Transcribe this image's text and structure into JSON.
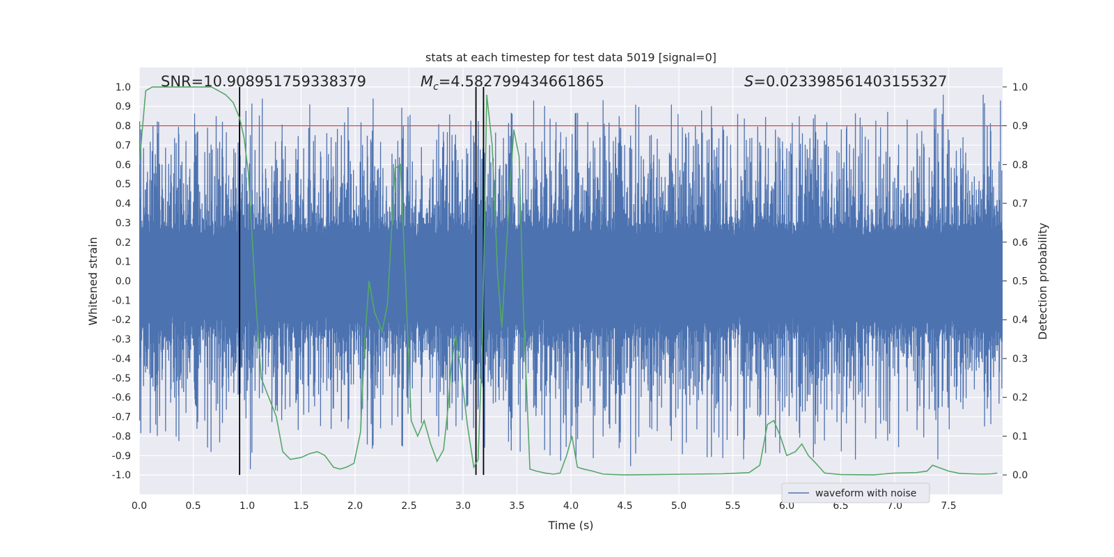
{
  "chart_data": {
    "type": "line",
    "title": "stats at each timestep for test data 5019 [signal=0]",
    "xlabel": "Time (s)",
    "ylabel": "Whitened strain",
    "ylabel_right": "Detection probability",
    "xlim": [
      0,
      8
    ],
    "ylim": [
      -1.1,
      1.1
    ],
    "ylim_right": [
      -0.05,
      1.05
    ],
    "x_ticks": [
      0.0,
      0.5,
      1.0,
      1.5,
      2.0,
      2.5,
      3.0,
      3.5,
      4.0,
      4.5,
      5.0,
      5.5,
      6.0,
      6.5,
      7.0,
      7.5
    ],
    "x_tick_labels": [
      "0.0",
      "0.5",
      "1.0",
      "1.5",
      "2.0",
      "2.5",
      "3.0",
      "3.5",
      "4.0",
      "4.5",
      "5.0",
      "5.5",
      "6.0",
      "6.5",
      "7.0",
      "7.5"
    ],
    "y_ticks": [
      -1.0,
      -0.9,
      -0.8,
      -0.7,
      -0.6,
      -0.5,
      -0.4,
      -0.3,
      -0.2,
      -0.1,
      0.0,
      0.1,
      0.2,
      0.3,
      0.4,
      0.5,
      0.6,
      0.7,
      0.8,
      0.9,
      1.0
    ],
    "y_tick_labels": [
      "-1.0",
      "-0.9",
      "-0.8",
      "-0.7",
      "-0.6",
      "-0.5",
      "-0.4",
      "-0.3",
      "-0.2",
      "-0.1",
      "0.0",
      "0.1",
      "0.2",
      "0.3",
      "0.4",
      "0.5",
      "0.6",
      "0.7",
      "0.8",
      "0.9",
      "1.0"
    ],
    "y_right_ticks": [
      0.0,
      0.1,
      0.2,
      0.3,
      0.4,
      0.5,
      0.6,
      0.7,
      0.8,
      0.9,
      1.0
    ],
    "y_right_tick_labels": [
      "0.0",
      "0.1",
      "0.2",
      "0.3",
      "0.4",
      "0.5",
      "0.6",
      "0.7",
      "0.8",
      "0.9",
      "1.0"
    ],
    "grid": true,
    "legend_position": "lower-right",
    "annotations": {
      "snr": "SNR=10.908951759338379",
      "mc": "=4.582799434661865",
      "mc_symbol": "M",
      "mc_subscript": "c",
      "s": "=0.023398561403155327",
      "s_symbol": "S"
    },
    "threshold": {
      "axis": "right",
      "value": 0.9,
      "color": "#c44e52"
    },
    "vertical_lines": [
      {
        "x": 0.93,
        "color": "#000000"
      },
      {
        "x": 3.12,
        "color": "#000000"
      },
      {
        "x": 3.19,
        "color": "#000000"
      }
    ],
    "series": [
      {
        "name": "waveform with noise",
        "axis": "left",
        "color": "#4c72b0",
        "style": "dense-noise",
        "envelope": {
          "typical_amplitude": 0.3,
          "peak_amplitude_max": 0.96,
          "dense_band": 0.22
        },
        "notable_peaks": [
          {
            "x": 0.18,
            "y": 0.82
          },
          {
            "x": 1.14,
            "y": 0.94
          },
          {
            "x": 1.58,
            "y": 0.91
          },
          {
            "x": 3.19,
            "y": 0.92
          },
          {
            "x": 7.45,
            "y": 0.96
          },
          {
            "x": 7.82,
            "y": 0.96
          },
          {
            "x": 7.98,
            "y": 0.93
          },
          {
            "x": 1.03,
            "y": -0.97
          },
          {
            "x": 3.53,
            "y": -0.88
          },
          {
            "x": 5.6,
            "y": -0.92
          },
          {
            "x": 7.4,
            "y": -0.92
          },
          {
            "x": 4.0,
            "y": -0.82
          }
        ]
      },
      {
        "name": "",
        "axis": "right",
        "color": "#55a868",
        "x": [
          0.0,
          0.06,
          0.12,
          0.25,
          0.4,
          0.55,
          0.67,
          0.8,
          0.87,
          0.93,
          0.97,
          1.01,
          1.08,
          1.13,
          1.2,
          1.27,
          1.33,
          1.4,
          1.5,
          1.58,
          1.65,
          1.72,
          1.8,
          1.86,
          1.92,
          1.99,
          2.05,
          2.09,
          2.13,
          2.18,
          2.25,
          2.3,
          2.37,
          2.42,
          2.46,
          2.52,
          2.58,
          2.64,
          2.7,
          2.76,
          2.82,
          2.86,
          2.89,
          2.93,
          2.98,
          3.04,
          3.1,
          3.14,
          3.18,
          3.22,
          3.27,
          3.32,
          3.36,
          3.42,
          3.47,
          3.52,
          3.56,
          3.62,
          3.68,
          3.76,
          3.84,
          3.9,
          3.96,
          4.01,
          4.06,
          4.12,
          4.2,
          4.3,
          4.5,
          4.8,
          5.1,
          5.4,
          5.65,
          5.75,
          5.82,
          5.88,
          5.94,
          6.0,
          6.08,
          6.14,
          6.2,
          6.27,
          6.35,
          6.5,
          6.8,
          7.0,
          7.2,
          7.3,
          7.35,
          7.4,
          7.5,
          7.6,
          7.7,
          7.8,
          7.9,
          7.95
        ],
        "y": [
          0.8,
          0.99,
          1.0,
          1.0,
          1.0,
          1.0,
          1.0,
          0.98,
          0.96,
          0.92,
          0.87,
          0.78,
          0.45,
          0.25,
          0.2,
          0.15,
          0.06,
          0.04,
          0.045,
          0.055,
          0.06,
          0.05,
          0.02,
          0.015,
          0.02,
          0.03,
          0.11,
          0.35,
          0.5,
          0.42,
          0.37,
          0.44,
          0.79,
          0.8,
          0.55,
          0.14,
          0.1,
          0.14,
          0.08,
          0.035,
          0.065,
          0.17,
          0.28,
          0.36,
          0.27,
          0.13,
          0.02,
          0.04,
          0.35,
          0.98,
          0.85,
          0.52,
          0.38,
          0.67,
          0.89,
          0.82,
          0.42,
          0.015,
          0.01,
          0.005,
          0.002,
          0.005,
          0.05,
          0.1,
          0.02,
          0.015,
          0.01,
          0.002,
          0.0,
          0.001,
          0.002,
          0.003,
          0.006,
          0.025,
          0.13,
          0.14,
          0.1,
          0.05,
          0.06,
          0.08,
          0.05,
          0.03,
          0.005,
          0.001,
          0.0,
          0.005,
          0.006,
          0.01,
          0.025,
          0.02,
          0.01,
          0.004,
          0.003,
          0.002,
          0.003,
          0.005
        ]
      }
    ]
  }
}
